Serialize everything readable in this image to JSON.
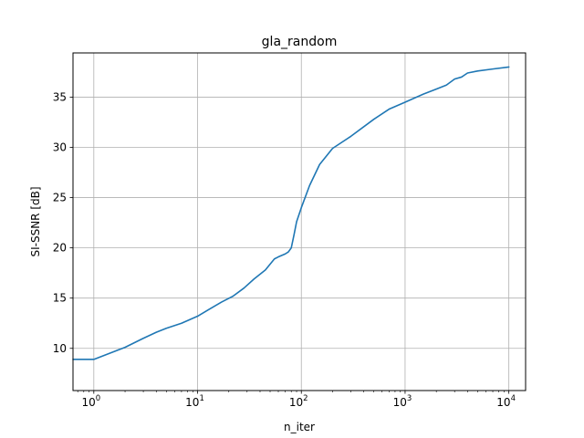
{
  "chart_data": {
    "type": "line",
    "title": "gla_random",
    "xlabel": "n_iter",
    "ylabel": "SI-SSNR [dB]",
    "xscale": "log",
    "xlim": [
      0.63,
      14500
    ],
    "ylim": [
      5.8,
      39.4
    ],
    "grid": true,
    "x_ticks": [
      {
        "value": 1,
        "label_base": "10",
        "label_exp": "0"
      },
      {
        "value": 10,
        "label_base": "10",
        "label_exp": "1"
      },
      {
        "value": 100,
        "label_base": "10",
        "label_exp": "2"
      },
      {
        "value": 1000,
        "label_base": "10",
        "label_exp": "3"
      },
      {
        "value": 10000,
        "label_base": "10",
        "label_exp": "4"
      }
    ],
    "y_ticks": [
      {
        "value": 10,
        "label": "10"
      },
      {
        "value": 15,
        "label": "15"
      },
      {
        "value": 20,
        "label": "20"
      },
      {
        "value": 25,
        "label": "25"
      },
      {
        "value": 30,
        "label": "30"
      },
      {
        "value": 35,
        "label": "35"
      }
    ],
    "series": [
      {
        "color": "#1f77b4",
        "x": [
          0.63,
          1,
          1.5,
          2,
          3,
          4,
          5,
          7,
          10,
          13,
          17,
          22,
          28,
          35,
          45,
          55,
          60,
          70,
          75,
          80,
          85,
          90,
          100,
          120,
          150,
          200,
          300,
          500,
          700,
          1000,
          1500,
          2000,
          2500,
          3000,
          3500,
          4000,
          5000,
          7000,
          10000
        ],
        "y": [
          8.9,
          8.9,
          9.6,
          10.1,
          11.0,
          11.6,
          12.0,
          12.5,
          13.2,
          13.9,
          14.6,
          15.2,
          16.0,
          16.9,
          17.8,
          18.9,
          19.1,
          19.4,
          19.6,
          20.0,
          21.3,
          22.6,
          24.0,
          26.2,
          28.3,
          29.9,
          31.1,
          32.8,
          33.8,
          34.5,
          35.3,
          35.8,
          36.2,
          36.8,
          37.0,
          37.4,
          37.6,
          37.8,
          38.0
        ]
      }
    ]
  }
}
